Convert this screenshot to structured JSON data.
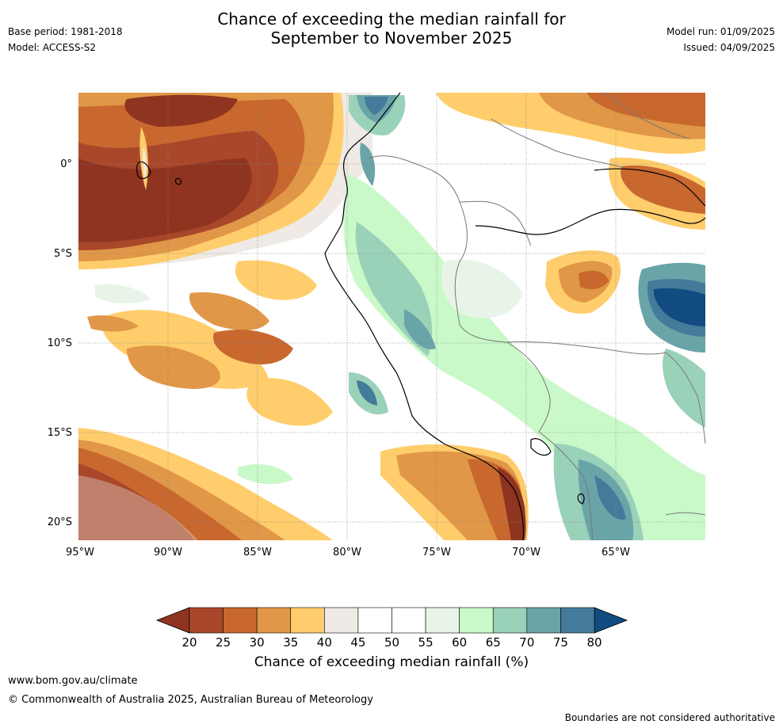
{
  "header": {
    "title_line1": "Chance of exceeding the median rainfall for",
    "title_line2": "September to November 2025",
    "base_period": "Base period: 1981-2018",
    "model": "Model: ACCESS-S2",
    "model_run": "Model run: 01/09/2025",
    "issued": "Issued: 04/09/2025"
  },
  "map": {
    "lon_ticks": [
      "95°W",
      "90°W",
      "85°W",
      "80°W",
      "75°W",
      "70°W",
      "65°W"
    ],
    "lat_ticks": [
      "0°",
      "5°S",
      "10°S",
      "15°S",
      "20°S"
    ]
  },
  "colorbar": {
    "label": "Chance of exceeding median rainfall (%)",
    "ticks": [
      "20",
      "25",
      "30",
      "35",
      "40",
      "45",
      "50",
      "55",
      "60",
      "65",
      "70",
      "75",
      "80"
    ],
    "under_color": "#8e3420",
    "over_color": "#114b80",
    "colors": [
      "#a9472a",
      "#c8682f",
      "#e09747",
      "#ffcd6b",
      "#efeae5",
      "#ffffff",
      "#ffffff",
      "#e8f4e8",
      "#c9f9c8",
      "#9ad1b9",
      "#69a4a8",
      "#447b9b"
    ]
  },
  "footer": {
    "url": "www.bom.gov.au/climate",
    "copyright": "© Commonwealth of Australia 2025, Australian Bureau of Meteorology",
    "note": "Boundaries are not considered authoritative"
  }
}
